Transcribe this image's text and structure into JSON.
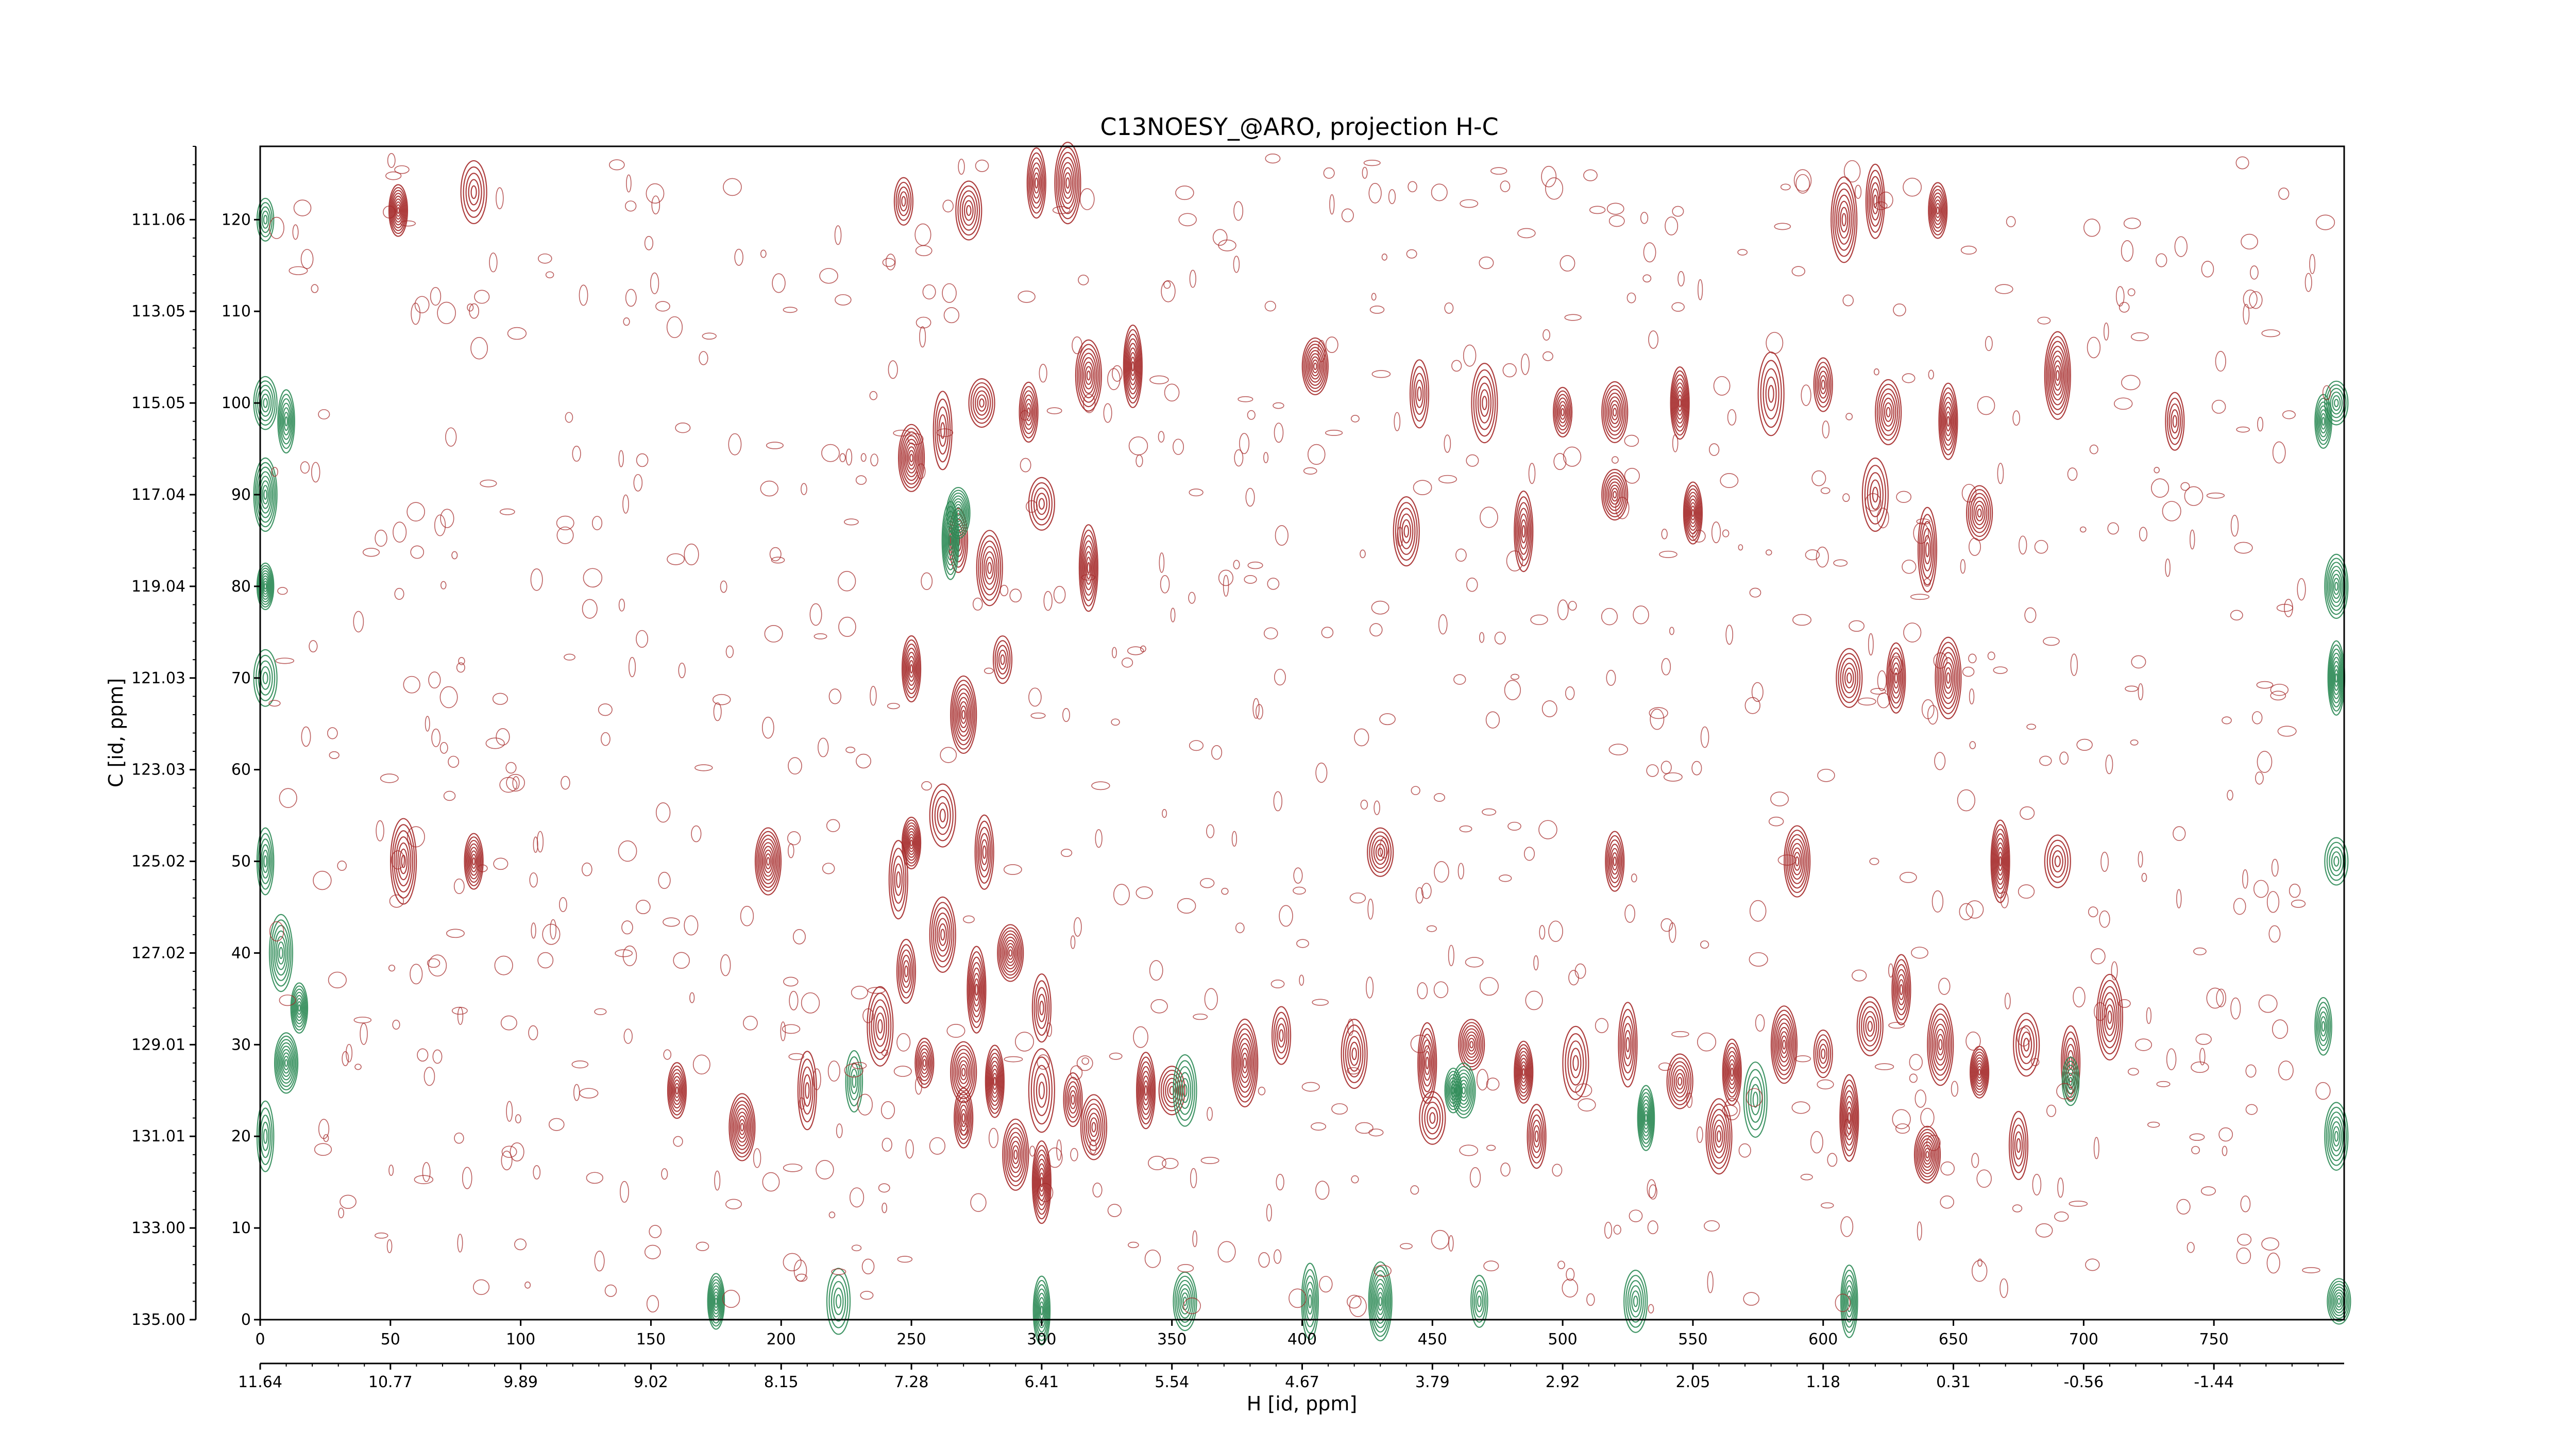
{
  "chart_data": {
    "type": "heatmap",
    "subtype": "2D NMR contour plot",
    "title": "C13NOESY_@ARO, projection H-C",
    "xlabel": "H [id, ppm]",
    "ylabel": "C [id, ppm]",
    "x_index_range": [
      0,
      800
    ],
    "y_index_range": [
      0,
      128
    ],
    "x_index_ticks": [
      0,
      50,
      100,
      150,
      200,
      250,
      300,
      350,
      400,
      450,
      500,
      550,
      600,
      650,
      700,
      750
    ],
    "x_index_tick_labels": [
      "0",
      "50",
      "100",
      "150",
      "200",
      "250",
      "300",
      "350",
      "400",
      "450",
      "500",
      "550",
      "600",
      "650",
      "700",
      "750"
    ],
    "x_ppm_tick_labels": [
      "11.64",
      "10.77",
      "9.89",
      "9.02",
      "8.15",
      "7.28",
      "6.41",
      "5.54",
      "4.67",
      "3.79",
      "2.92",
      "2.05",
      "1.18",
      "0.31",
      "-0.56",
      "-1.44"
    ],
    "y_index_ticks": [
      0,
      10,
      20,
      30,
      40,
      50,
      60,
      70,
      80,
      90,
      100,
      110,
      120
    ],
    "y_index_tick_labels": [
      "0",
      "10",
      "20",
      "30",
      "40",
      "50",
      "60",
      "70",
      "80",
      "90",
      "100",
      "110",
      "120"
    ],
    "y_ppm_tick_labels": [
      "135.00",
      "133.00",
      "131.01",
      "129.01",
      "127.02",
      "125.02",
      "123.03",
      "121.03",
      "119.04",
      "117.04",
      "115.05",
      "113.05",
      "111.06"
    ],
    "colors": {
      "positive": "#a52a2a",
      "negative": "#2e8b57",
      "axis": "#000000"
    },
    "grid": false,
    "legend": "none",
    "peaks_positive": [
      [
        247,
        122
      ],
      [
        272,
        121
      ],
      [
        298,
        124
      ],
      [
        310,
        124
      ],
      [
        53,
        121
      ],
      [
        82,
        123
      ],
      [
        620,
        122
      ],
      [
        608,
        120
      ],
      [
        644,
        121
      ],
      [
        250,
        94
      ],
      [
        262,
        97
      ],
      [
        277,
        100
      ],
      [
        295,
        99
      ],
      [
        318,
        103
      ],
      [
        335,
        104
      ],
      [
        300,
        89
      ],
      [
        268,
        85
      ],
      [
        280,
        82
      ],
      [
        318,
        82
      ],
      [
        405,
        104
      ],
      [
        445,
        101
      ],
      [
        470,
        100
      ],
      [
        500,
        99
      ],
      [
        520,
        99
      ],
      [
        545,
        100
      ],
      [
        580,
        101
      ],
      [
        600,
        102
      ],
      [
        625,
        99
      ],
      [
        648,
        98
      ],
      [
        690,
        103
      ],
      [
        735,
        98
      ],
      [
        440,
        86
      ],
      [
        485,
        86
      ],
      [
        520,
        90
      ],
      [
        550,
        88
      ],
      [
        620,
        90
      ],
      [
        640,
        84
      ],
      [
        660,
        88
      ],
      [
        250,
        71
      ],
      [
        270,
        66
      ],
      [
        285,
        72
      ],
      [
        610,
        70
      ],
      [
        628,
        70
      ],
      [
        648,
        70
      ],
      [
        250,
        52
      ],
      [
        262,
        55
      ],
      [
        278,
        51
      ],
      [
        55,
        50
      ],
      [
        82,
        50
      ],
      [
        195,
        50
      ],
      [
        245,
        48
      ],
      [
        430,
        51
      ],
      [
        520,
        50
      ],
      [
        590,
        50
      ],
      [
        668,
        50
      ],
      [
        690,
        50
      ],
      [
        248,
        38
      ],
      [
        262,
        42
      ],
      [
        275,
        36
      ],
      [
        288,
        40
      ],
      [
        300,
        34
      ],
      [
        238,
        32
      ],
      [
        255,
        28
      ],
      [
        270,
        27
      ],
      [
        282,
        26
      ],
      [
        300,
        25
      ],
      [
        312,
        24
      ],
      [
        320,
        21
      ],
      [
        340,
        25
      ],
      [
        378,
        28
      ],
      [
        392,
        31
      ],
      [
        420,
        29
      ],
      [
        448,
        28
      ],
      [
        465,
        30
      ],
      [
        485,
        27
      ],
      [
        505,
        28
      ],
      [
        525,
        30
      ],
      [
        545,
        26
      ],
      [
        565,
        27
      ],
      [
        585,
        30
      ],
      [
        600,
        29
      ],
      [
        618,
        32
      ],
      [
        630,
        36
      ],
      [
        645,
        30
      ],
      [
        660,
        27
      ],
      [
        678,
        30
      ],
      [
        695,
        28
      ],
      [
        710,
        33
      ],
      [
        160,
        25
      ],
      [
        185,
        21
      ],
      [
        210,
        25
      ],
      [
        350,
        25
      ],
      [
        270,
        22
      ],
      [
        290,
        18
      ],
      [
        300,
        15
      ],
      [
        450,
        22
      ],
      [
        490,
        20
      ],
      [
        560,
        20
      ],
      [
        610,
        22
      ],
      [
        640,
        18
      ],
      [
        675,
        19
      ]
    ],
    "peaks_negative": [
      [
        2,
        120
      ],
      [
        2,
        100
      ],
      [
        10,
        98
      ],
      [
        2,
        90
      ],
      [
        2,
        80
      ],
      [
        2,
        70
      ],
      [
        2,
        50
      ],
      [
        8,
        40
      ],
      [
        15,
        34
      ],
      [
        10,
        28
      ],
      [
        2,
        20
      ],
      [
        797,
        100
      ],
      [
        792,
        98
      ],
      [
        797,
        80
      ],
      [
        797,
        70
      ],
      [
        797,
        50
      ],
      [
        792,
        32
      ],
      [
        797,
        20
      ],
      [
        265,
        85
      ],
      [
        268,
        88
      ],
      [
        228,
        26
      ],
      [
        355,
        25
      ],
      [
        458,
        25
      ],
      [
        462,
        25
      ],
      [
        532,
        22
      ],
      [
        574,
        24
      ],
      [
        695,
        26
      ],
      [
        355,
        2
      ],
      [
        300,
        1
      ],
      [
        430,
        2
      ],
      [
        468,
        2
      ],
      [
        528,
        2
      ],
      [
        610,
        2
      ],
      [
        798,
        2
      ],
      [
        175,
        2
      ],
      [
        222,
        2
      ],
      [
        403,
        2
      ]
    ]
  }
}
